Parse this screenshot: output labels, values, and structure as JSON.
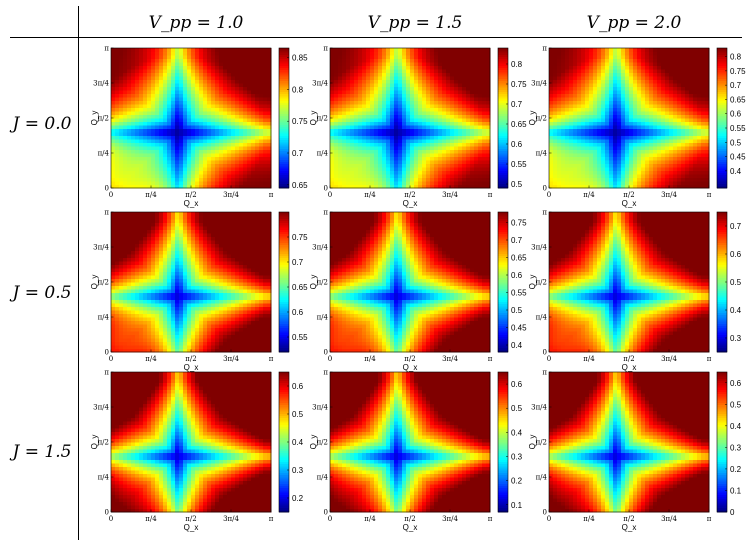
{
  "chart_data": {
    "type": "heatmap",
    "colormap": "jet",
    "column_headers": [
      "V_pp = 1.0",
      "V_pp = 1.5",
      "V_pp = 2.0"
    ],
    "row_headers": [
      "J = 0.0",
      "J = 0.5",
      "J = 1.5"
    ],
    "xlabel": "Q_x",
    "ylabel": "Q_y",
    "x_ticks": [
      "0",
      "π/4",
      "π/2",
      "3π/4",
      "π"
    ],
    "y_ticks": [
      "0",
      "π/4",
      "π/2",
      "3π/4",
      "π"
    ],
    "xlim": [
      0,
      3.1416
    ],
    "ylim": [
      0,
      3.1416
    ],
    "panels": [
      {
        "row": 0,
        "col": 0,
        "clim": [
          0.645,
          0.865
        ],
        "colorbar_ticks": [
          "0.85",
          "0.8",
          "0.75",
          "0.7",
          "0.65"
        ],
        "colorbar_tick_values": [
          0.85,
          0.8,
          0.75,
          0.7,
          0.65
        ]
      },
      {
        "row": 0,
        "col": 1,
        "clim": [
          0.49,
          0.84
        ],
        "colorbar_ticks": [
          "0.8",
          "0.75",
          "0.7",
          "0.65",
          "0.6",
          "0.55",
          "0.5"
        ],
        "colorbar_tick_values": [
          0.8,
          0.75,
          0.7,
          0.65,
          0.6,
          0.55,
          0.5
        ]
      },
      {
        "row": 0,
        "col": 2,
        "clim": [
          0.34,
          0.83
        ],
        "colorbar_ticks": [
          "0.8",
          "0.75",
          "0.7",
          "0.65",
          "0.6",
          "0.55",
          "0.5",
          "0.45",
          "0.4"
        ],
        "colorbar_tick_values": [
          0.8,
          0.75,
          0.7,
          0.65,
          0.6,
          0.55,
          0.5,
          0.45,
          0.4
        ]
      },
      {
        "row": 1,
        "col": 0,
        "clim": [
          0.52,
          0.8
        ],
        "colorbar_ticks": [
          "0.75",
          "0.7",
          "0.65",
          "0.6",
          "0.55"
        ],
        "colorbar_tick_values": [
          0.75,
          0.7,
          0.65,
          0.6,
          0.55
        ]
      },
      {
        "row": 1,
        "col": 1,
        "clim": [
          0.38,
          0.78
        ],
        "colorbar_ticks": [
          "0.75",
          "0.7",
          "0.65",
          "0.6",
          "0.55",
          "0.5",
          "0.45",
          "0.4"
        ],
        "colorbar_tick_values": [
          0.75,
          0.7,
          0.65,
          0.6,
          0.55,
          0.5,
          0.45,
          0.4
        ]
      },
      {
        "row": 1,
        "col": 2,
        "clim": [
          0.25,
          0.75
        ],
        "colorbar_ticks": [
          "0.7",
          "0.6",
          "0.5",
          "0.4",
          "0.3"
        ],
        "colorbar_tick_values": [
          0.7,
          0.6,
          0.5,
          0.4,
          0.3
        ]
      },
      {
        "row": 2,
        "col": 0,
        "clim": [
          0.15,
          0.65
        ],
        "colorbar_ticks": [
          "0.6",
          "0.5",
          "0.4",
          "0.3",
          "0.2"
        ],
        "colorbar_tick_values": [
          0.6,
          0.5,
          0.4,
          0.3,
          0.2
        ]
      },
      {
        "row": 2,
        "col": 1,
        "clim": [
          0.07,
          0.65
        ],
        "colorbar_ticks": [
          "0.6",
          "0.5",
          "0.4",
          "0.3",
          "0.2",
          "0.1"
        ],
        "colorbar_tick_values": [
          0.6,
          0.5,
          0.4,
          0.3,
          0.2,
          0.1
        ]
      },
      {
        "row": 2,
        "col": 2,
        "clim": [
          0.0,
          0.65
        ],
        "colorbar_ticks": [
          "0.6",
          "0.5",
          "0.4",
          "0.3",
          "0.2",
          "0.1",
          "0"
        ],
        "colorbar_tick_values": [
          0.6,
          0.5,
          0.4,
          0.3,
          0.2,
          0.1,
          0
        ]
      }
    ]
  }
}
